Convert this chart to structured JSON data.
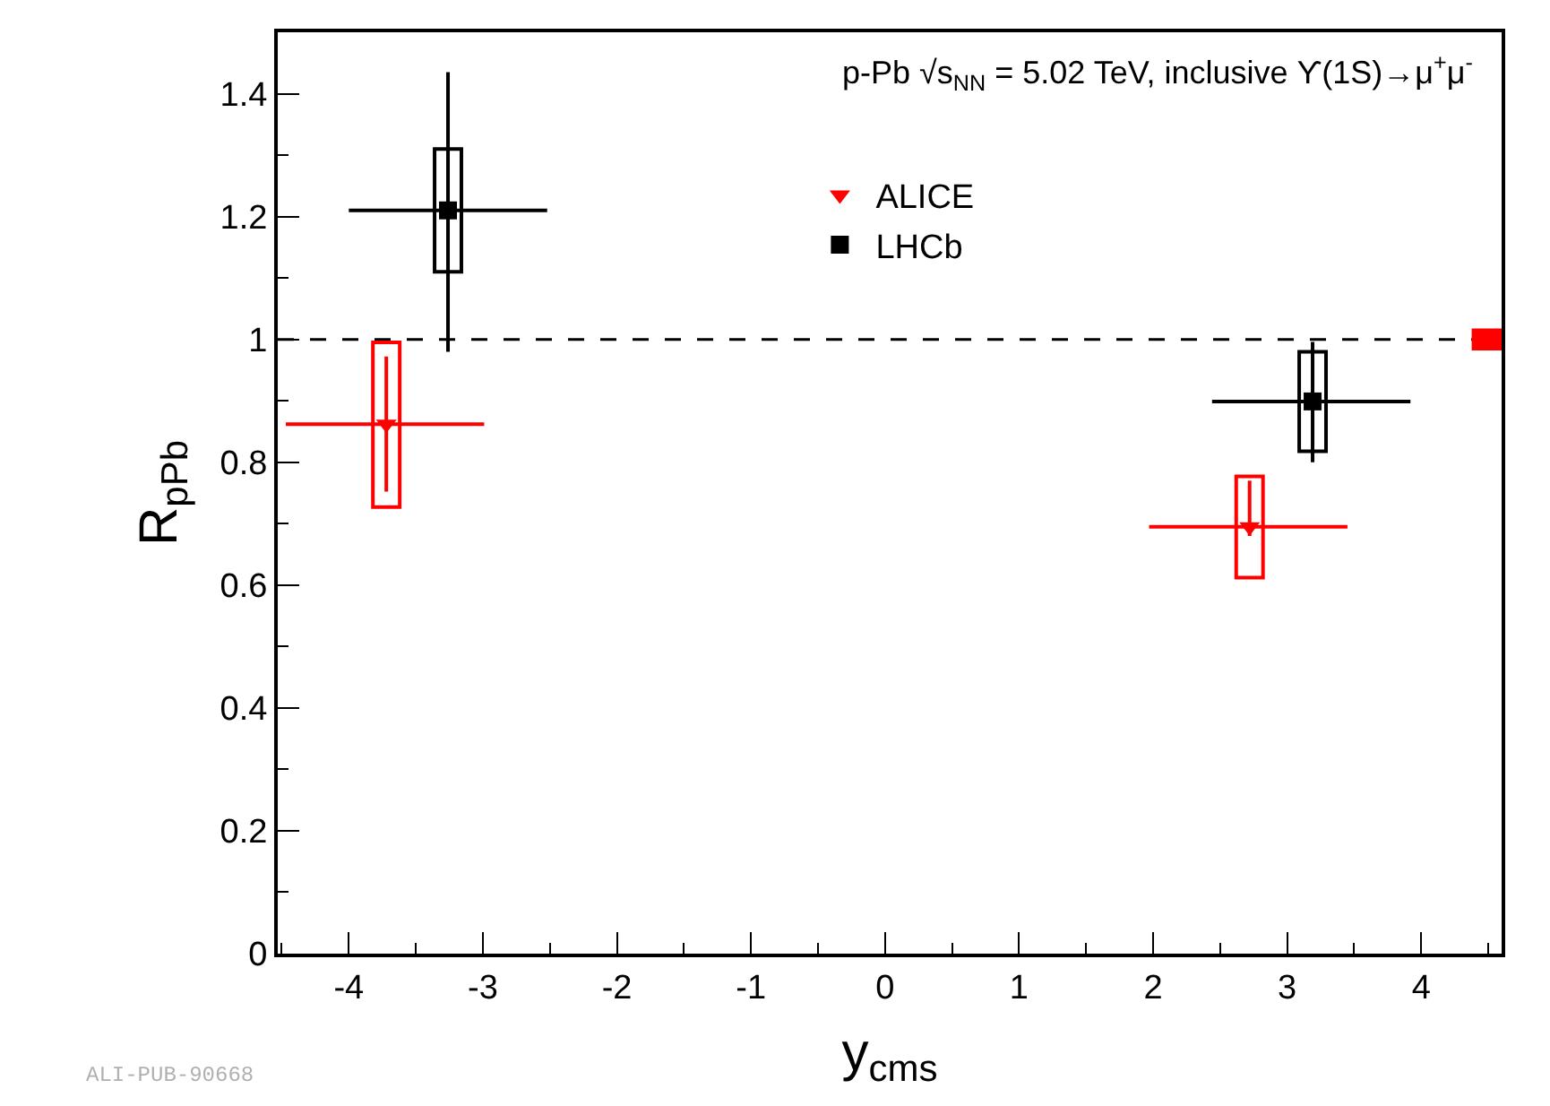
{
  "chart_data": {
    "type": "scatter",
    "annotations": [
      "p-Pb √s$_{NN}$ = 5.02 TeV, inclusive ϒ(1S)→μ$^{+}$μ$^{-}$",
      "ALI-PUB-90668"
    ],
    "xlabel": "y$_{cms}$",
    "ylabel": "R$_{pPb}$",
    "xlim": [
      -4.53,
      4.6
    ],
    "xticks": [
      -4,
      -3,
      -2,
      -1,
      0,
      1,
      2,
      3,
      4
    ],
    "ylim": [
      0,
      1.5
    ],
    "yticks": [
      0,
      0.2,
      0.4,
      0.6,
      0.8,
      1,
      1.2,
      1.4
    ],
    "grid": false,
    "legend": "top",
    "ref_lines": [
      {
        "axis": "y",
        "value": 1,
        "line_style": "dashed",
        "color": "#000000"
      }
    ],
    "series": [
      {
        "name": "ALICE",
        "color": "#ff0000",
        "marker": "triangle",
        "x": [
          -3.72,
          2.72
        ],
        "values": [
          0.862,
          0.695
        ],
        "errors": [
          [
            0.752,
            0.972
          ],
          [
            0.68,
            0.77
          ]
        ],
        "xerrors": [
          [
            -4.47,
            -2.99
          ],
          [
            1.97,
            3.45
          ]
        ]
      },
      {
        "name": "LHCb",
        "color": "#000000",
        "marker": "square",
        "x": [
          -3.26,
          3.19
        ],
        "values": [
          1.21,
          0.899
        ],
        "errors": [
          [
            0.98,
            1.435
          ],
          [
            0.8,
            0.996
          ]
        ],
        "xerrors": [
          [
            -4.0,
            -2.52
          ],
          [
            2.44,
            3.92
          ]
        ]
      },
      {
        "type": "bar",
        "color": "#ff0000",
        "x": [
          -3.72,
          2.72
        ],
        "base": [
          0.727,
          0.612
        ],
        "values": [
          0.268,
          0.165
        ]
      },
      {
        "type": "bar",
        "color": "#000000",
        "x": [
          -3.26,
          3.19
        ],
        "base": [
          1.11,
          0.818
        ],
        "values": [
          0.2,
          0.162
        ]
      },
      {
        "type": "bar",
        "color": "#ff0000",
        "colors": [
          "#ff0000"
        ],
        "x": [
          4.49
        ],
        "base": [
          0.985
        ],
        "values": [
          0.03
        ]
      }
    ]
  }
}
